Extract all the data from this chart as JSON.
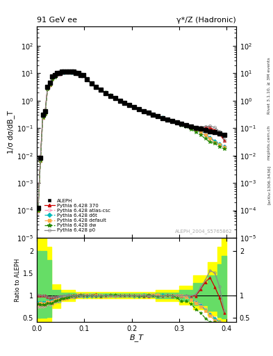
{
  "title_left": "91 GeV ee",
  "title_right": "γ*/Z (Hadronic)",
  "ylabel_main": "1/σ dσ/dB_T",
  "ylabel_ratio": "Ratio to ALEPH",
  "xlabel": "B_T",
  "watermark": "ALEPH_2004_S5765862",
  "right_label_top": "Rivet 3.1.10, ≥ 3M events",
  "right_label_mid": "mcplots.cern.ch",
  "right_label_bot": "[arXiv:1306.3436]",
  "xlim": [
    0.0,
    0.42
  ],
  "ylim_main": [
    1e-05,
    500.0
  ],
  "ylim_ratio": [
    0.4,
    2.3
  ],
  "ratio_yticks": [
    0.5,
    1.0,
    1.5,
    2.0
  ],
  "ratio_ytick_labels": [
    "0.5",
    "1",
    "1.5",
    "2"
  ],
  "background_color": "#ffffff",
  "band_yellow": "#ffff00",
  "band_green": "#66dd66",
  "series": {
    "ALEPH": {
      "color": "#000000",
      "marker": "s",
      "markersize": 4,
      "linestyle": "none",
      "label": "ALEPH"
    },
    "370": {
      "color": "#cc0000",
      "marker": "^",
      "markersize": 3,
      "linestyle": "-",
      "label": "Pythia 6.428 370",
      "open": false
    },
    "atlas-csc": {
      "color": "#ff88aa",
      "marker": "o",
      "markersize": 3,
      "linestyle": "--",
      "label": "Pythia 6.428 atlas-csc",
      "open": true
    },
    "d6t": {
      "color": "#00bbbb",
      "marker": "D",
      "markersize": 3,
      "linestyle": "--",
      "label": "Pythia 6.428 d6t",
      "open": false
    },
    "default": {
      "color": "#ffaa44",
      "marker": "s",
      "markersize": 3,
      "linestyle": "--",
      "label": "Pythia 6.428 default",
      "open": false
    },
    "dw": {
      "color": "#228800",
      "marker": "*",
      "markersize": 4,
      "linestyle": "--",
      "label": "Pythia 6.428 dw",
      "open": false
    },
    "p0": {
      "color": "#888888",
      "marker": "o",
      "markersize": 3,
      "linestyle": "-",
      "label": "Pythia 6.428 p0",
      "open": true
    }
  }
}
